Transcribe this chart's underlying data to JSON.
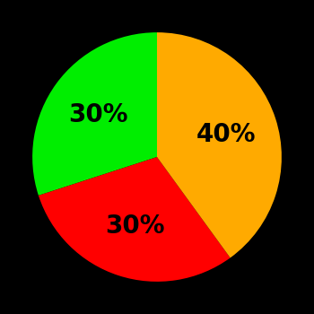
{
  "slices": [
    {
      "label": "40%",
      "value": 40,
      "color": "#ffaa00"
    },
    {
      "label": "30%",
      "value": 30,
      "color": "#ff0000"
    },
    {
      "label": "30%",
      "value": 30,
      "color": "#00ee00"
    }
  ],
  "background_color": "#000000",
  "startangle": 90,
  "label_fontsize": 20,
  "label_fontweight": "bold",
  "label_color": "#000000",
  "figsize": [
    3.5,
    3.5
  ],
  "dpi": 100
}
